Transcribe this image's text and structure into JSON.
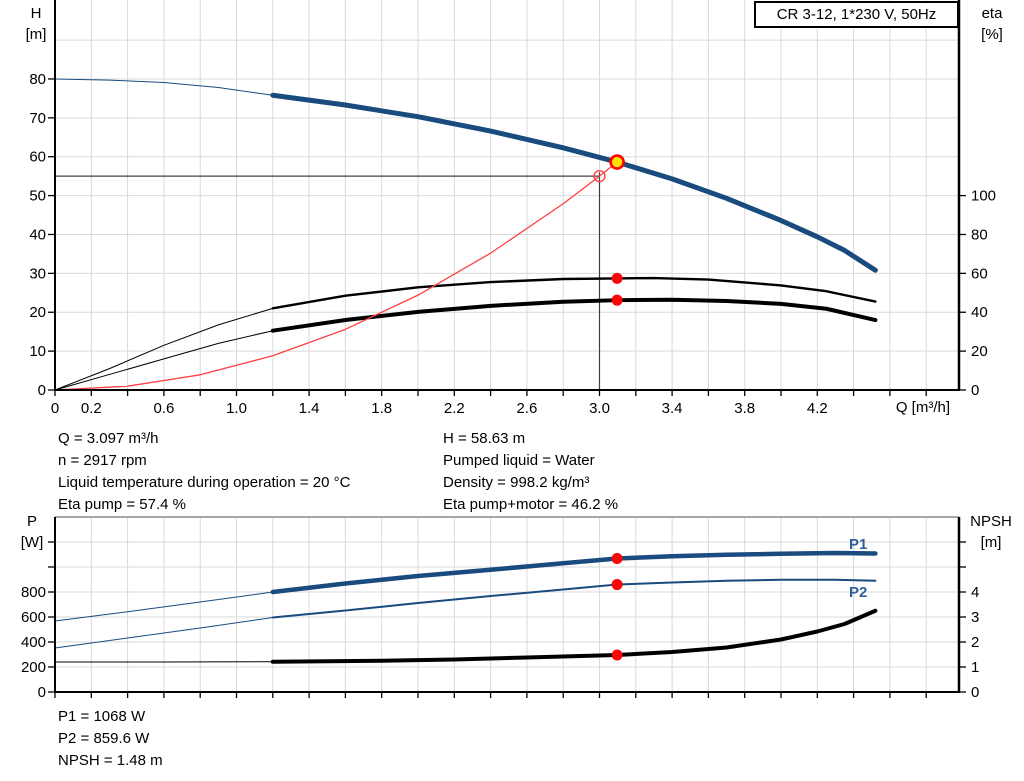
{
  "title_box": {
    "label": "CR 3-12, 1*230 V, 50Hz"
  },
  "axis_labels": {
    "h": "H",
    "h_unit": "[m]",
    "eta": "eta",
    "eta_unit": "[%]",
    "q": "Q [m³/h]",
    "p": "P",
    "p_unit": "[W]",
    "npsh": "NPSH",
    "npsh_unit": "[m]"
  },
  "curve_labels": {
    "p1": "P1",
    "p2": "P2"
  },
  "annotations": {
    "left": [
      "Q = 3.097 m³/h",
      "n = 2917 rpm",
      "Liquid temperature during operation = 20 °C",
      "Eta pump = 57.4 %"
    ],
    "right": [
      "H = 58.63 m",
      "Pumped liquid = Water",
      "Density = 998.2 kg/m³",
      "Eta pump+motor = 46.2 %"
    ],
    "bottom": [
      "P1 = 1068 W",
      "P2 = 859.6 W",
      "NPSH = 1.48 m"
    ]
  },
  "colors": {
    "curve_blue": "#1a4b7e",
    "label_blue": "#2e5f97",
    "black": "#000000",
    "red": "#fb0505",
    "system_red": "#ff4040",
    "duty_yellow": "#ffe000",
    "grid": "#d9d9d9",
    "guide": "#404040",
    "frame_gray": "#a6a6a6"
  },
  "chart_data": [
    {
      "type": "line",
      "title": "CR 3-12, 1*230 V, 50Hz",
      "xlabel": "Q [m³/h]",
      "ylabel_left": "H [m]",
      "ylabel_right": "eta [%]",
      "xlim": [
        0,
        5.0
      ],
      "ylim_left": [
        0,
        100
      ],
      "ylim_right": [
        0,
        200
      ],
      "grid": true,
      "x_tick_step": 0.2,
      "x_labels": [
        {
          "v": 0,
          "t": "0"
        },
        {
          "v": 0.2,
          "t": "0.2"
        },
        {
          "v": 0.6,
          "t": "0.6"
        },
        {
          "v": 1.0,
          "t": "1.0"
        },
        {
          "v": 1.4,
          "t": "1.4"
        },
        {
          "v": 1.8,
          "t": "1.8"
        },
        {
          "v": 2.2,
          "t": "2.2"
        },
        {
          "v": 2.6,
          "t": "2.6"
        },
        {
          "v": 3.0,
          "t": "3.0"
        },
        {
          "v": 3.4,
          "t": "3.4"
        },
        {
          "v": 3.8,
          "t": "3.8"
        },
        {
          "v": 4.2,
          "t": "4.2"
        }
      ],
      "y_left_ticks": [
        0,
        10,
        20,
        30,
        40,
        50,
        60,
        70,
        80
      ],
      "y_right_ticks": [
        0,
        20,
        40,
        60,
        80,
        100
      ],
      "series": [
        {
          "name": "pump-curve-QH",
          "axis": "H",
          "color": "curve_blue",
          "width": 5,
          "thin": [
            [
              0,
              80
            ],
            [
              0.3,
              79.7
            ],
            [
              0.6,
              79.1
            ],
            [
              0.9,
              77.8
            ],
            [
              1.2,
              75.8
            ]
          ],
          "points": [
            [
              1.2,
              75.8
            ],
            [
              1.6,
              73.3
            ],
            [
              2.0,
              70.3
            ],
            [
              2.4,
              66.6
            ],
            [
              2.8,
              62.3
            ],
            [
              3.097,
              58.63
            ],
            [
              3.4,
              54.3
            ],
            [
              3.7,
              49.3
            ],
            [
              4.0,
              43.6
            ],
            [
              4.2,
              39.4
            ],
            [
              4.35,
              35.9
            ],
            [
              4.52,
              30.8
            ]
          ]
        },
        {
          "name": "eta-pump-curve",
          "axis": "eta",
          "color": "black",
          "width": 2.4,
          "thin": [
            [
              0,
              0
            ],
            [
              0.3,
              11
            ],
            [
              0.6,
              23
            ],
            [
              0.9,
              33.5
            ],
            [
              1.2,
              42
            ]
          ],
          "points": [
            [
              1.2,
              42
            ],
            [
              1.6,
              48.5
            ],
            [
              2.0,
              52.8
            ],
            [
              2.4,
              55.5
            ],
            [
              2.8,
              57.1
            ],
            [
              3.097,
              57.4
            ],
            [
              3.3,
              57.6
            ],
            [
              3.6,
              56.8
            ],
            [
              4.0,
              53.8
            ],
            [
              4.25,
              50.8
            ],
            [
              4.52,
              45.5
            ]
          ]
        },
        {
          "name": "eta-pump-motor-curve",
          "axis": "eta",
          "color": "black",
          "width": 4,
          "thin": [
            [
              0,
              0
            ],
            [
              0.3,
              8
            ],
            [
              0.6,
              16
            ],
            [
              0.9,
              24
            ],
            [
              1.2,
              30.5
            ]
          ],
          "points": [
            [
              1.2,
              30.5
            ],
            [
              1.6,
              36
            ],
            [
              2.0,
              40.2
            ],
            [
              2.4,
              43.3
            ],
            [
              2.8,
              45.4
            ],
            [
              3.097,
              46.2
            ],
            [
              3.4,
              46.4
            ],
            [
              3.7,
              45.8
            ],
            [
              4.0,
              44.3
            ],
            [
              4.25,
              41.8
            ],
            [
              4.52,
              36
            ]
          ]
        },
        {
          "name": "system-curve",
          "axis": "H",
          "color": "system_red",
          "width": 1.3,
          "thin": [],
          "points": [
            [
              0,
              0
            ],
            [
              0.4,
              0.98
            ],
            [
              0.8,
              3.91
            ],
            [
              1.2,
              8.8
            ],
            [
              1.6,
              15.6
            ],
            [
              2.0,
              24.4
            ],
            [
              2.4,
              35.2
            ],
            [
              2.8,
              47.9
            ],
            [
              3.0,
              55.0
            ],
            [
              3.097,
              58.63
            ]
          ]
        }
      ],
      "guides": {
        "hline_H": 55,
        "hline_q_end": 3.0,
        "vline_q": 3.0,
        "vline_H_top": 56
      },
      "markers": [
        {
          "name": "requested-duty-point",
          "q": 3.0,
          "axis": "H",
          "v": 55.0,
          "style": "open"
        },
        {
          "name": "duty-point",
          "q": 3.097,
          "axis": "H",
          "v": 58.63,
          "style": "duty"
        },
        {
          "name": "eta-pump-dot",
          "q": 3.097,
          "axis": "eta",
          "v": 57.4,
          "style": "dot"
        },
        {
          "name": "eta-pump-motor-dot",
          "q": 3.097,
          "axis": "eta",
          "v": 46.2,
          "style": "dot"
        }
      ]
    },
    {
      "type": "line",
      "xlabel": "",
      "ylabel_left": "P [W]",
      "ylabel_right": "NPSH [m]",
      "xlim": [
        0,
        5.0
      ],
      "ylim_left": [
        0,
        1400
      ],
      "ylim_right": [
        0,
        7
      ],
      "grid": true,
      "x_tick_step": 0.2,
      "x_labels": [],
      "y_left_ticks": [
        0,
        200,
        400,
        600,
        800,
        1000,
        1200
      ],
      "y_left_label_max": 800,
      "y_right_ticks": [
        0,
        1,
        2,
        3,
        4,
        5,
        6
      ],
      "y_right_label_max": 4,
      "series": [
        {
          "name": "p1-curve",
          "axis": "P",
          "color": "curve_blue",
          "width": 4.5,
          "thin": [
            [
              0,
              568
            ],
            [
              0.4,
              642
            ],
            [
              0.8,
              720
            ],
            [
              1.2,
              800
            ]
          ],
          "points": [
            [
              1.2,
              800
            ],
            [
              1.6,
              868
            ],
            [
              2.0,
              928
            ],
            [
              2.4,
              978
            ],
            [
              2.8,
              1030
            ],
            [
              3.097,
              1068
            ],
            [
              3.4,
              1086
            ],
            [
              3.7,
              1098
            ],
            [
              4.0,
              1106
            ],
            [
              4.3,
              1112
            ],
            [
              4.52,
              1108
            ]
          ]
        },
        {
          "name": "p2-curve",
          "axis": "P",
          "color": "curve_blue",
          "width": 2,
          "thin": [
            [
              0,
              352
            ],
            [
              0.4,
              432
            ],
            [
              0.8,
              512
            ],
            [
              1.2,
              596
            ]
          ],
          "points": [
            [
              1.2,
              596
            ],
            [
              1.6,
              652
            ],
            [
              2.0,
              712
            ],
            [
              2.4,
              768
            ],
            [
              2.8,
              820
            ],
            [
              3.097,
              859.6
            ],
            [
              3.4,
              876
            ],
            [
              3.7,
              890
            ],
            [
              4.0,
              898
            ],
            [
              4.3,
              898
            ],
            [
              4.52,
              890
            ]
          ]
        },
        {
          "name": "npsh-curve",
          "axis": "NPSH",
          "color": "black",
          "width": 4,
          "thin": [
            [
              0,
              1.2
            ],
            [
              0.6,
              1.2
            ],
            [
              1.2,
              1.21
            ]
          ],
          "points": [
            [
              1.2,
              1.21
            ],
            [
              1.8,
              1.25
            ],
            [
              2.2,
              1.3
            ],
            [
              2.6,
              1.38
            ],
            [
              3.097,
              1.48
            ],
            [
              3.4,
              1.6
            ],
            [
              3.7,
              1.78
            ],
            [
              4.0,
              2.1
            ],
            [
              4.2,
              2.42
            ],
            [
              4.35,
              2.72
            ],
            [
              4.52,
              3.25
            ]
          ]
        }
      ],
      "markers": [
        {
          "name": "p1-dot",
          "q": 3.097,
          "axis": "P",
          "v": 1068,
          "style": "dot"
        },
        {
          "name": "p2-dot",
          "q": 3.097,
          "axis": "P",
          "v": 859.6,
          "style": "dot"
        },
        {
          "name": "npsh-dot",
          "q": 3.097,
          "axis": "NPSH",
          "v": 1.48,
          "style": "dot"
        }
      ]
    }
  ]
}
